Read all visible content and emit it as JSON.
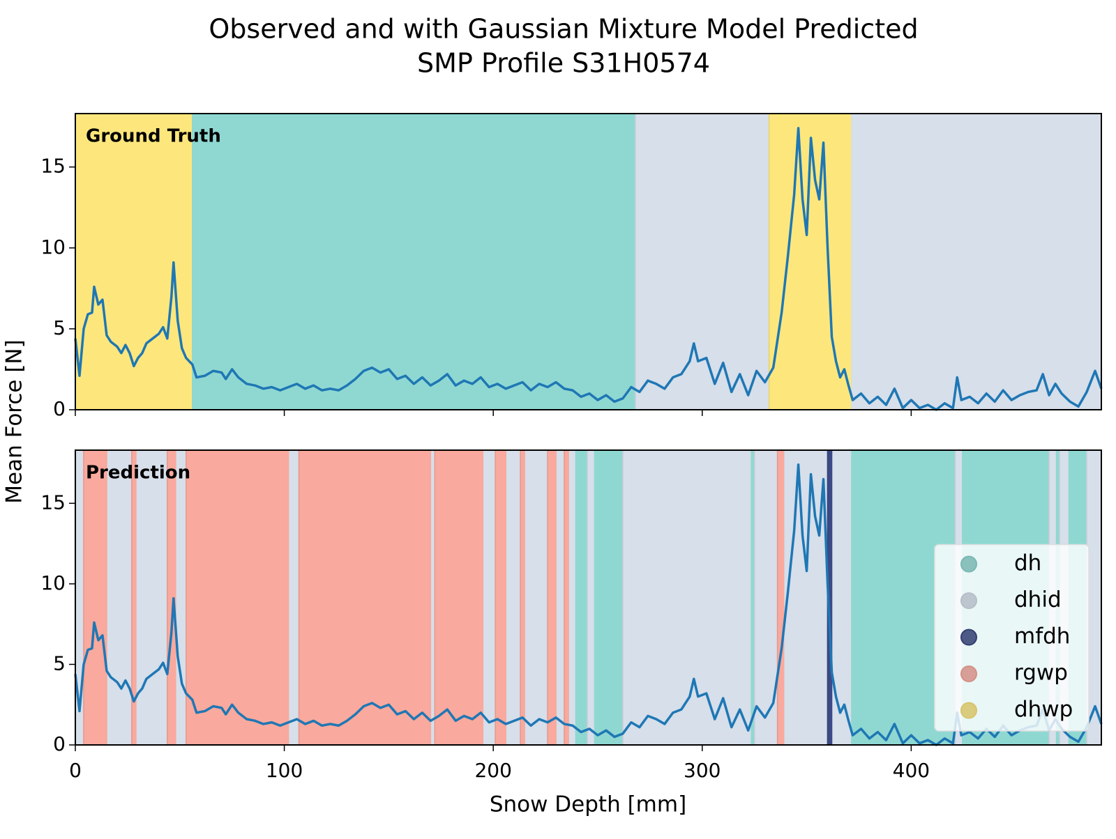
{
  "chart_data": {
    "type": "line",
    "title": [
      "Observed and with Gaussian Mixture Model Predicted",
      "SMP Profile S31H0574"
    ],
    "xlabel": "Snow Depth [mm]",
    "ylabel": "Mean Force [N]",
    "color": "#1f77b4",
    "xlim": [
      0,
      491
    ],
    "ylim": [
      0,
      18.3
    ],
    "xticks": [
      0,
      100,
      200,
      300,
      400
    ],
    "yticks": [
      0,
      5,
      10,
      15
    ],
    "legend": "lower right",
    "panels": [
      {
        "label": "Ground Truth"
      },
      {
        "label": "Prediction"
      }
    ],
    "x": [
      0,
      2,
      4,
      6,
      8,
      9,
      11,
      13,
      15,
      17,
      20,
      22,
      24,
      26,
      28,
      30,
      32,
      34,
      37,
      40,
      42,
      44,
      46,
      47,
      49,
      51,
      53,
      56,
      58,
      62,
      66,
      70,
      72,
      75,
      78,
      82,
      86,
      90,
      94,
      98,
      102,
      106,
      110,
      114,
      118,
      122,
      126,
      130,
      134,
      138,
      142,
      146,
      150,
      154,
      158,
      162,
      166,
      170,
      174,
      178,
      182,
      186,
      190,
      194,
      198,
      202,
      206,
      210,
      214,
      218,
      222,
      226,
      230,
      234,
      238,
      242,
      246,
      250,
      254,
      258,
      262,
      266,
      270,
      274,
      278,
      282,
      286,
      290,
      294,
      296,
      298,
      302,
      306,
      310,
      314,
      318,
      322,
      326,
      330,
      334,
      338,
      341,
      344,
      346,
      348,
      350,
      352,
      354,
      356,
      358,
      360,
      362,
      364,
      366,
      368,
      370,
      372,
      376,
      380,
      384,
      388,
      392,
      396,
      400,
      404,
      408,
      412,
      416,
      420,
      422,
      424,
      428,
      432,
      436,
      440,
      444,
      448,
      452,
      456,
      460,
      463,
      466,
      469,
      472,
      476,
      480,
      484,
      488,
      491
    ],
    "values": [
      4.4,
      2.1,
      5.0,
      5.9,
      6.0,
      7.6,
      6.5,
      6.8,
      4.6,
      4.2,
      3.9,
      3.5,
      4.0,
      3.5,
      2.7,
      3.2,
      3.5,
      4.1,
      4.4,
      4.7,
      5.1,
      4.4,
      7.0,
      9.1,
      5.5,
      3.8,
      3.2,
      2.8,
      2.0,
      2.1,
      2.4,
      2.3,
      1.9,
      2.5,
      2.0,
      1.6,
      1.5,
      1.3,
      1.4,
      1.2,
      1.4,
      1.6,
      1.3,
      1.5,
      1.2,
      1.3,
      1.2,
      1.5,
      1.9,
      2.4,
      2.6,
      2.3,
      2.5,
      1.9,
      2.1,
      1.6,
      2.0,
      1.5,
      1.8,
      2.2,
      1.5,
      1.8,
      1.6,
      2.0,
      1.4,
      1.6,
      1.3,
      1.5,
      1.7,
      1.2,
      1.6,
      1.4,
      1.7,
      1.3,
      1.2,
      0.8,
      1.0,
      0.6,
      0.9,
      0.5,
      0.7,
      1.4,
      1.1,
      1.8,
      1.6,
      1.3,
      2.0,
      2.2,
      3.0,
      4.1,
      3.0,
      3.2,
      1.6,
      2.9,
      1.1,
      2.2,
      0.9,
      2.4,
      1.7,
      2.6,
      6.0,
      9.5,
      13.3,
      17.4,
      13.0,
      10.8,
      16.8,
      14.2,
      13.0,
      16.5,
      10.0,
      4.5,
      3.0,
      2.0,
      2.5,
      1.5,
      0.6,
      1.0,
      0.4,
      0.8,
      0.3,
      1.3,
      0.1,
      0.6,
      0.1,
      0.3,
      0.0,
      0.4,
      0.1,
      2.0,
      0.6,
      0.8,
      0.4,
      1.0,
      0.5,
      1.2,
      0.6,
      0.9,
      1.1,
      1.2,
      2.2,
      0.9,
      1.6,
      1.0,
      0.5,
      0.2,
      1.1,
      2.4,
      1.3
    ],
    "classes": [
      {
        "name": "dh",
        "color": "#8fd8d2",
        "spans": [
          [
            [
              55.5,
              268
            ]
          ],
          [
            [
              239,
              245
            ],
            [
              248,
              262
            ],
            [
              323,
              325
            ],
            [
              371,
              421
            ],
            [
              424,
              466
            ],
            [
              469,
              471
            ],
            [
              475,
              484
            ]
          ]
        ]
      },
      {
        "name": "dhid",
        "color": "#d6dfea",
        "spans": [
          [
            [
              268,
              332
            ],
            [
              371,
              491
            ]
          ],
          [
            [
              0,
              4
            ],
            [
              15,
              27
            ],
            [
              29,
              44
            ],
            [
              48,
              53
            ],
            [
              102,
              107
            ],
            [
              170,
              172
            ],
            [
              195,
              201
            ],
            [
              206,
              213
            ],
            [
              215,
              226
            ],
            [
              230,
              234
            ],
            [
              236,
              239
            ],
            [
              245,
              248
            ],
            [
              262,
              323
            ],
            [
              325,
              336
            ],
            [
              339,
              360
            ],
            [
              362,
              371
            ],
            [
              421,
              424
            ],
            [
              466,
              469
            ],
            [
              471,
              475
            ],
            [
              484,
              491
            ]
          ]
        ]
      },
      {
        "name": "mfdh",
        "color": "#3b4a86",
        "spans": [
          [],
          [
            [
              360,
              362
            ]
          ]
        ]
      },
      {
        "name": "rgwp",
        "color": "#f9a99d",
        "spans": [
          [],
          [
            [
              4,
              15
            ],
            [
              27,
              29
            ],
            [
              44,
              48
            ],
            [
              53,
              102
            ],
            [
              107,
              170
            ],
            [
              172,
              195
            ],
            [
              201,
              206
            ],
            [
              213,
              215
            ],
            [
              226,
              230
            ],
            [
              234,
              236
            ],
            [
              336,
              339
            ]
          ]
        ]
      },
      {
        "name": "dhwp",
        "color": "#fde77c",
        "spans": [
          [
            [
              0,
              55.5
            ],
            [
              332,
              371
            ]
          ],
          []
        ]
      }
    ]
  }
}
